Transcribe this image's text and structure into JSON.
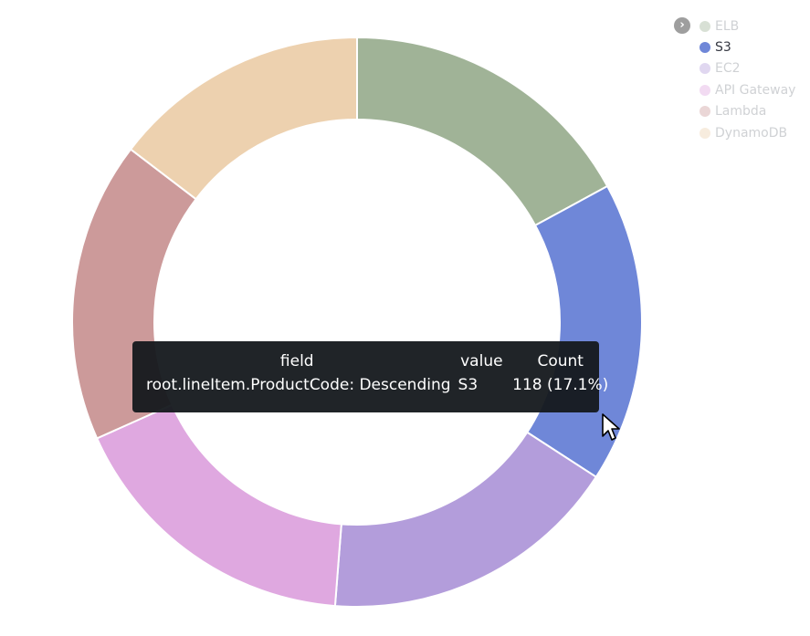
{
  "chart_data": {
    "type": "pie",
    "donut": true,
    "categories": [
      "ELB",
      "S3",
      "EC2",
      "API Gateway",
      "Lambda",
      "DynamoDB"
    ],
    "values": [
      118,
      118,
      118,
      118,
      118,
      101
    ],
    "colors": [
      "#a0b397",
      "#6f87d8",
      "#b39ddb",
      "#dfa8e0",
      "#cc9a9a",
      "#edd1af"
    ],
    "legend": {
      "position": "top-right",
      "active": "S3"
    }
  },
  "tooltip": {
    "headers": [
      "field",
      "value",
      "Count"
    ],
    "row": {
      "field": "root.lineItem.ProductCode: Descending",
      "value": "S3",
      "count": "118 (17.1%)"
    }
  },
  "icons": {
    "legend_toggle": "chevron-right-icon",
    "cursor": "mouse-pointer-icon"
  }
}
